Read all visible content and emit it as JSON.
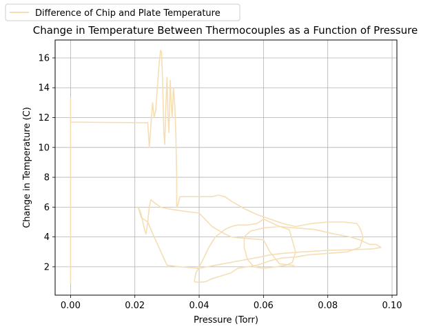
{
  "chart_data": {
    "type": "line",
    "title": "Change in Temperature Between Thermocouples as a Function of Pressure",
    "xlabel": "Pressure (Torr)",
    "ylabel": "Change in Temperature (C)",
    "xlim": [
      -0.0048,
      0.1015
    ],
    "ylim": [
      0.1,
      17.2
    ],
    "xticks": [
      0.0,
      0.02,
      0.04,
      0.06,
      0.08,
      0.1
    ],
    "xtick_labels": [
      "0.00",
      "0.02",
      "0.04",
      "0.06",
      "0.08",
      "0.10"
    ],
    "yticks": [
      2,
      4,
      6,
      8,
      10,
      12,
      14,
      16
    ],
    "ytick_labels": [
      "2",
      "4",
      "6",
      "8",
      "10",
      "12",
      "14",
      "16"
    ],
    "grid": true,
    "legend_position": "top-left",
    "series": [
      {
        "name": "Difference of Chip and Plate Temperature",
        "color": "#f5deb3",
        "x": [
          0.0,
          0.0,
          0.0,
          0.0,
          0.0,
          0.0,
          0.0,
          0.0,
          0.024,
          0.0245,
          0.025,
          0.0255,
          0.026,
          0.0265,
          0.027,
          0.0275,
          0.028,
          0.0283,
          0.0287,
          0.029,
          0.0293,
          0.0296,
          0.03,
          0.0303,
          0.0306,
          0.031,
          0.0313,
          0.0316,
          0.032,
          0.0322,
          0.0325,
          0.0328,
          0.033,
          0.033,
          0.033,
          0.0333,
          0.0338,
          0.034,
          0.036,
          0.04,
          0.044,
          0.046,
          0.048,
          0.05,
          0.054,
          0.058,
          0.062,
          0.066,
          0.07,
          0.075,
          0.08,
          0.085,
          0.089,
          0.09,
          0.091,
          0.09,
          0.086,
          0.08,
          0.074,
          0.07,
          0.066,
          0.062,
          0.058,
          0.055,
          0.052,
          0.05,
          0.047,
          0.044,
          0.042,
          0.04,
          0.0385,
          0.039,
          0.041,
          0.043,
          0.045,
          0.048,
          0.05,
          0.052,
          0.055,
          0.058,
          0.06,
          0.062,
          0.065,
          0.068,
          0.07,
          0.069,
          0.067,
          0.064,
          0.06,
          0.057,
          0.055,
          0.054,
          0.054,
          0.056,
          0.06,
          0.065,
          0.07,
          0.076,
          0.082,
          0.087,
          0.09,
          0.092,
          0.093,
          0.095,
          0.0965,
          0.094,
          0.088,
          0.08,
          0.072,
          0.066,
          0.062,
          0.06,
          0.055,
          0.05,
          0.045,
          0.04,
          0.034,
          0.03,
          0.026,
          0.024,
          0.022,
          0.021,
          0.0215,
          0.022,
          0.0225,
          0.023,
          0.0235,
          0.024,
          0.0245,
          0.025,
          0.026,
          0.028,
          0.03,
          0.033,
          0.036,
          0.04,
          0.044,
          0.048,
          0.05,
          0.052,
          0.055,
          0.058,
          0.06,
          0.062,
          0.065,
          0.069,
          0.07
        ],
        "y": [
          0.9,
          4.5,
          9.0,
          13.3,
          5.0,
          1.2,
          8.0,
          11.7,
          11.65,
          10.0,
          11.5,
          13.0,
          12.0,
          12.5,
          14.0,
          15.5,
          16.5,
          16.4,
          14.0,
          11.0,
          10.2,
          12.5,
          14.7,
          12.0,
          11.0,
          14.5,
          13.0,
          12.0,
          14.0,
          13.5,
          12.5,
          10.5,
          8.0,
          7.0,
          6.0,
          6.1,
          6.5,
          6.7,
          6.7,
          6.7,
          6.7,
          6.8,
          6.7,
          6.4,
          5.9,
          5.5,
          5.2,
          4.9,
          4.7,
          4.9,
          5.0,
          5.0,
          4.9,
          4.6,
          4.0,
          3.3,
          3.0,
          2.9,
          2.8,
          2.65,
          2.6,
          2.4,
          2.1,
          2.0,
          1.9,
          1.6,
          1.4,
          1.2,
          1.0,
          0.95,
          1.0,
          1.6,
          2.4,
          3.3,
          4.0,
          4.5,
          4.7,
          4.8,
          4.8,
          4.9,
          5.2,
          5.0,
          4.7,
          4.5,
          3.0,
          2.3,
          2.1,
          2.0,
          1.9,
          2.0,
          2.5,
          3.3,
          4.0,
          4.4,
          4.6,
          4.7,
          4.6,
          4.5,
          4.2,
          4.0,
          3.8,
          3.6,
          3.5,
          3.5,
          3.3,
          3.2,
          3.15,
          3.1,
          3.0,
          2.9,
          2.8,
          2.7,
          2.5,
          2.3,
          2.1,
          1.9,
          2.0,
          2.1,
          4.0,
          5.0,
          5.3,
          6.0,
          5.8,
          5.5,
          5.0,
          4.5,
          4.2,
          5.0,
          6.0,
          6.5,
          6.3,
          6.0,
          5.9,
          5.8,
          5.7,
          5.6,
          4.7,
          4.2,
          4.0,
          3.95,
          3.9,
          3.85,
          3.8,
          3.0,
          2.2,
          2.1,
          2.0
        ]
      }
    ]
  }
}
